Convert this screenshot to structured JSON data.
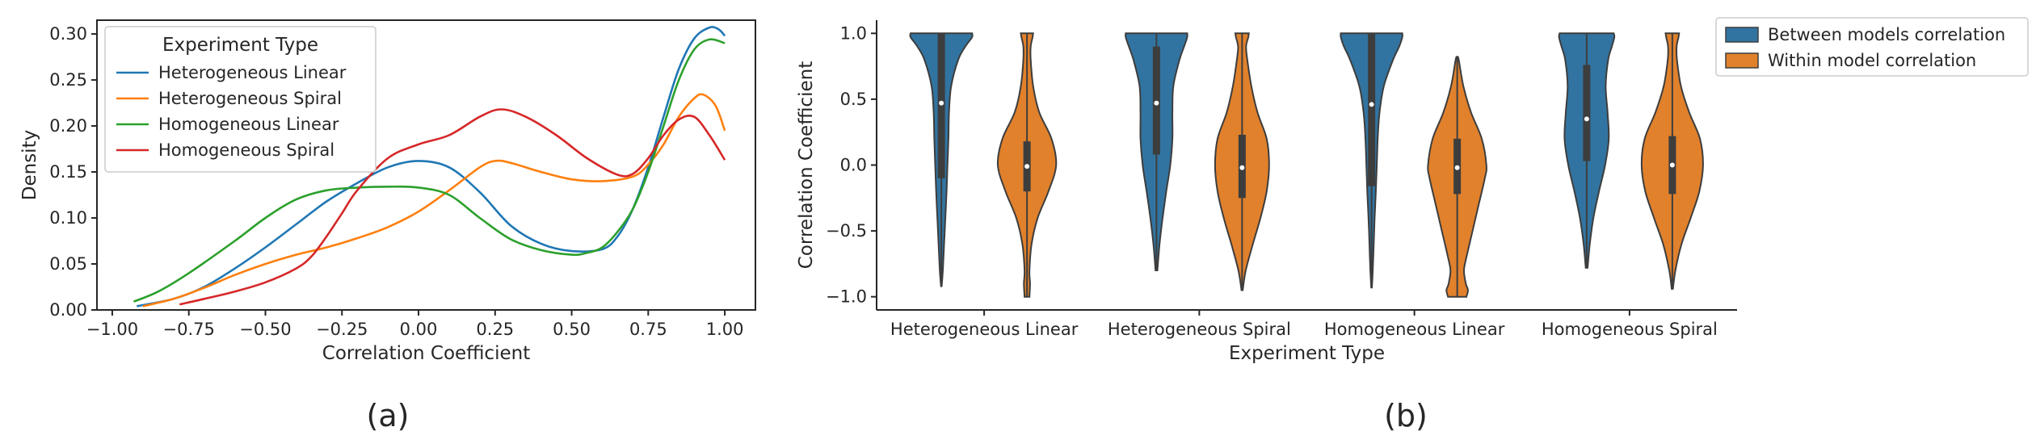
{
  "panels": {
    "a": {
      "label": "(a)"
    },
    "b": {
      "label": "(b)"
    }
  },
  "chart_data": [
    {
      "type": "line",
      "title": "",
      "xlabel": "Correlation Coefficient",
      "ylabel": "Density",
      "xlim": [
        -1.05,
        1.1
      ],
      "ylim": [
        0,
        0.315
      ],
      "xticks": [
        -1.0,
        -0.75,
        -0.5,
        -0.25,
        0.0,
        0.25,
        0.5,
        0.75,
        1.0
      ],
      "xtick_labels": [
        "−1.00",
        "−0.75",
        "−0.50",
        "−0.25",
        "0.00",
        "0.25",
        "0.50",
        "0.75",
        "1.00"
      ],
      "yticks": [
        0,
        0.05,
        0.1,
        0.15,
        0.2,
        0.25,
        0.3
      ],
      "ytick_labels": [
        "0.00",
        "0.05",
        "0.10",
        "0.15",
        "0.20",
        "0.25",
        "0.30"
      ],
      "legend": {
        "title": "Experiment Type",
        "position": "upper-left"
      },
      "series": [
        {
          "name": "Heterogeneous Linear",
          "color": "#1f77b4",
          "x": [
            -0.92,
            -0.8,
            -0.7,
            -0.6,
            -0.5,
            -0.4,
            -0.3,
            -0.2,
            -0.1,
            0.0,
            0.1,
            0.2,
            0.3,
            0.4,
            0.5,
            0.6,
            0.65,
            0.7,
            0.75,
            0.8,
            0.85,
            0.9,
            0.95,
            0.98,
            1.0
          ],
          "y": [
            0.004,
            0.012,
            0.025,
            0.045,
            0.068,
            0.093,
            0.118,
            0.138,
            0.155,
            0.162,
            0.155,
            0.128,
            0.092,
            0.072,
            0.064,
            0.066,
            0.08,
            0.11,
            0.155,
            0.21,
            0.262,
            0.295,
            0.307,
            0.305,
            0.298
          ]
        },
        {
          "name": "Heterogeneous Spiral",
          "color": "#ff7f0e",
          "x": [
            -0.9,
            -0.8,
            -0.7,
            -0.6,
            -0.5,
            -0.4,
            -0.3,
            -0.2,
            -0.1,
            0.0,
            0.1,
            0.2,
            0.25,
            0.3,
            0.4,
            0.5,
            0.6,
            0.7,
            0.75,
            0.8,
            0.85,
            0.9,
            0.93,
            0.97,
            1.0
          ],
          "y": [
            0.004,
            0.012,
            0.024,
            0.038,
            0.05,
            0.06,
            0.068,
            0.078,
            0.09,
            0.107,
            0.13,
            0.155,
            0.162,
            0.16,
            0.15,
            0.142,
            0.14,
            0.145,
            0.158,
            0.18,
            0.21,
            0.23,
            0.234,
            0.222,
            0.195
          ]
        },
        {
          "name": "Homogeneous Linear",
          "color": "#2ca02c",
          "x": [
            -0.93,
            -0.85,
            -0.75,
            -0.6,
            -0.5,
            -0.4,
            -0.3,
            -0.2,
            -0.1,
            0.0,
            0.1,
            0.2,
            0.3,
            0.4,
            0.5,
            0.55,
            0.6,
            0.65,
            0.7,
            0.75,
            0.8,
            0.85,
            0.9,
            0.95,
            1.0
          ],
          "y": [
            0.009,
            0.02,
            0.04,
            0.075,
            0.1,
            0.12,
            0.13,
            0.133,
            0.134,
            0.133,
            0.125,
            0.1,
            0.077,
            0.065,
            0.06,
            0.062,
            0.068,
            0.085,
            0.11,
            0.15,
            0.2,
            0.25,
            0.283,
            0.294,
            0.29
          ]
        },
        {
          "name": "Homogeneous Spiral",
          "color": "#d62728",
          "x": [
            -0.78,
            -0.7,
            -0.6,
            -0.5,
            -0.4,
            -0.35,
            -0.3,
            -0.25,
            -0.2,
            -0.1,
            0.0,
            0.1,
            0.2,
            0.27,
            0.35,
            0.45,
            0.55,
            0.65,
            0.7,
            0.75,
            0.8,
            0.85,
            0.9,
            0.95,
            1.0
          ],
          "y": [
            0.006,
            0.012,
            0.02,
            0.03,
            0.045,
            0.058,
            0.08,
            0.105,
            0.13,
            0.165,
            0.18,
            0.19,
            0.21,
            0.218,
            0.21,
            0.19,
            0.165,
            0.147,
            0.148,
            0.165,
            0.19,
            0.207,
            0.21,
            0.19,
            0.163
          ]
        }
      ]
    },
    {
      "type": "violin",
      "title": "",
      "xlabel": "Experiment Type",
      "ylabel": "Correlation Coefficient",
      "ylim": [
        -1.1,
        1.1
      ],
      "yticks": [
        -1.0,
        -0.5,
        0.0,
        0.5,
        1.0
      ],
      "ytick_labels": [
        "−1.0",
        "−0.5",
        "0.0",
        "0.5",
        "1.0"
      ],
      "categories": [
        "Heterogeneous Linear",
        "Heterogeneous Spiral",
        "Homogeneous Linear",
        "Homogeneous Spiral"
      ],
      "legend": {
        "position": "upper-right-outside"
      },
      "series": [
        {
          "name": "Between models correlation",
          "color": "#3274a1",
          "violins": [
            {
              "min": -0.92,
              "max": 1.0,
              "q1": -0.1,
              "median": 0.47,
              "q3": 1.0,
              "profile": [
                [
                  -0.92,
                  0.01
                ],
                [
                  -0.8,
                  0.05
                ],
                [
                  -0.6,
                  0.09
                ],
                [
                  -0.4,
                  0.13
                ],
                [
                  -0.2,
                  0.17
                ],
                [
                  0.0,
                  0.2
                ],
                [
                  0.2,
                  0.23
                ],
                [
                  0.4,
                  0.25
                ],
                [
                  0.6,
                  0.32
                ],
                [
                  0.8,
                  0.55
                ],
                [
                  0.9,
                  0.78
                ],
                [
                  0.97,
                  1.0
                ],
                [
                  1.0,
                  1.0
                ]
              ]
            },
            {
              "min": -0.8,
              "max": 1.0,
              "q1": 0.08,
              "median": 0.47,
              "q3": 0.9,
              "profile": [
                [
                  -0.8,
                  0.03
                ],
                [
                  -0.6,
                  0.1
                ],
                [
                  -0.4,
                  0.2
                ],
                [
                  -0.2,
                  0.32
                ],
                [
                  0.0,
                  0.45
                ],
                [
                  0.2,
                  0.52
                ],
                [
                  0.4,
                  0.52
                ],
                [
                  0.6,
                  0.55
                ],
                [
                  0.8,
                  0.75
                ],
                [
                  0.9,
                  0.9
                ],
                [
                  0.97,
                  1.0
                ],
                [
                  1.0,
                  1.0
                ]
              ]
            },
            {
              "min": -0.93,
              "max": 1.0,
              "q1": -0.16,
              "median": 0.46,
              "q3": 1.0,
              "profile": [
                [
                  -0.93,
                  0.01
                ],
                [
                  -0.8,
                  0.04
                ],
                [
                  -0.6,
                  0.07
                ],
                [
                  -0.4,
                  0.1
                ],
                [
                  -0.2,
                  0.14
                ],
                [
                  0.0,
                  0.17
                ],
                [
                  0.2,
                  0.2
                ],
                [
                  0.4,
                  0.26
                ],
                [
                  0.6,
                  0.4
                ],
                [
                  0.8,
                  0.7
                ],
                [
                  0.9,
                  0.9
                ],
                [
                  0.97,
                  1.0
                ],
                [
                  1.0,
                  1.0
                ]
              ]
            },
            {
              "min": -0.78,
              "max": 1.0,
              "q1": 0.03,
              "median": 0.35,
              "q3": 0.76,
              "profile": [
                [
                  -0.78,
                  0.03
                ],
                [
                  -0.6,
                  0.1
                ],
                [
                  -0.4,
                  0.22
                ],
                [
                  -0.2,
                  0.4
                ],
                [
                  0.0,
                  0.6
                ],
                [
                  0.2,
                  0.72
                ],
                [
                  0.4,
                  0.68
                ],
                [
                  0.6,
                  0.62
                ],
                [
                  0.8,
                  0.7
                ],
                [
                  0.9,
                  0.82
                ],
                [
                  0.97,
                  0.9
                ],
                [
                  1.0,
                  0.88
                ]
              ]
            }
          ]
        },
        {
          "name": "Within model correlation",
          "color": "#e1812c",
          "violins": [
            {
              "min": -1.0,
              "max": 1.0,
              "q1": -0.2,
              "median": -0.01,
              "q3": 0.18,
              "profile": [
                [
                  -1.0,
                  0.08
                ],
                [
                  -0.9,
                  0.1
                ],
                [
                  -0.8,
                  0.08
                ],
                [
                  -0.6,
                  0.15
                ],
                [
                  -0.4,
                  0.35
                ],
                [
                  -0.2,
                  0.7
                ],
                [
                  0.0,
                  0.95
                ],
                [
                  0.2,
                  0.8
                ],
                [
                  0.4,
                  0.4
                ],
                [
                  0.6,
                  0.2
                ],
                [
                  0.8,
                  0.12
                ],
                [
                  0.9,
                  0.12
                ],
                [
                  0.97,
                  0.18
                ],
                [
                  1.0,
                  0.2
                ]
              ]
            },
            {
              "min": -0.95,
              "max": 1.0,
              "q1": -0.25,
              "median": -0.02,
              "q3": 0.23,
              "profile": [
                [
                  -0.95,
                  0.02
                ],
                [
                  -0.8,
                  0.12
                ],
                [
                  -0.6,
                  0.35
                ],
                [
                  -0.4,
                  0.6
                ],
                [
                  -0.2,
                  0.8
                ],
                [
                  0.0,
                  0.88
                ],
                [
                  0.2,
                  0.8
                ],
                [
                  0.4,
                  0.5
                ],
                [
                  0.6,
                  0.3
                ],
                [
                  0.8,
                  0.17
                ],
                [
                  0.9,
                  0.13
                ],
                [
                  0.97,
                  0.2
                ],
                [
                  1.0,
                  0.22
                ]
              ]
            },
            {
              "min": -1.0,
              "max": 0.82,
              "q1": -0.22,
              "median": -0.02,
              "q3": 0.2,
              "profile": [
                [
                  -1.0,
                  0.3
                ],
                [
                  -0.95,
                  0.35
                ],
                [
                  -0.9,
                  0.28
                ],
                [
                  -0.8,
                  0.22
                ],
                [
                  -0.7,
                  0.3
                ],
                [
                  -0.5,
                  0.5
                ],
                [
                  -0.3,
                  0.7
                ],
                [
                  -0.1,
                  0.9
                ],
                [
                  0.0,
                  0.95
                ],
                [
                  0.2,
                  0.8
                ],
                [
                  0.4,
                  0.45
                ],
                [
                  0.6,
                  0.2
                ],
                [
                  0.8,
                  0.05
                ],
                [
                  0.82,
                  0.01
                ]
              ]
            },
            {
              "min": -0.94,
              "max": 1.0,
              "q1": -0.22,
              "median": 0.0,
              "q3": 0.22,
              "profile": [
                [
                  -0.94,
                  0.02
                ],
                [
                  -0.8,
                  0.1
                ],
                [
                  -0.6,
                  0.3
                ],
                [
                  -0.4,
                  0.6
                ],
                [
                  -0.2,
                  0.88
                ],
                [
                  0.0,
                  1.0
                ],
                [
                  0.2,
                  0.9
                ],
                [
                  0.4,
                  0.55
                ],
                [
                  0.6,
                  0.28
                ],
                [
                  0.8,
                  0.15
                ],
                [
                  0.9,
                  0.14
                ],
                [
                  0.97,
                  0.2
                ],
                [
                  1.0,
                  0.22
                ]
              ]
            }
          ]
        }
      ]
    }
  ]
}
